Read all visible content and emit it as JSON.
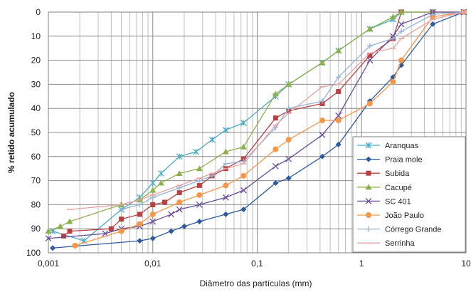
{
  "chart_data": {
    "type": "line",
    "x_scale": "log",
    "y_reversed": true,
    "xlabel": "Diâmetro das partículas (mm)",
    "ylabel": "% retido acumulado",
    "xlim": [
      0.001,
      10
    ],
    "ylim": [
      0,
      100
    ],
    "x_ticks": [
      "0,001",
      "0,01",
      "0,1",
      "1",
      "10"
    ],
    "y_ticks": [
      "0",
      "10",
      "20",
      "30",
      "40",
      "50",
      "60",
      "70",
      "80",
      "90",
      "100"
    ],
    "grid": true,
    "legend_position": "bottom-right",
    "series": [
      {
        "name": "Aranquas",
        "color": "#4bacc6",
        "marker": "star",
        "points": [
          [
            0.0011,
            91
          ],
          [
            0.0022,
            95
          ],
          [
            0.005,
            82
          ],
          [
            0.0075,
            77
          ],
          [
            0.01,
            71
          ],
          [
            0.012,
            67
          ],
          [
            0.018,
            60
          ],
          [
            0.026,
            58
          ],
          [
            0.037,
            53
          ],
          [
            0.05,
            49
          ],
          [
            0.074,
            46
          ],
          [
            0.15,
            35
          ],
          [
            0.2,
            30
          ],
          [
            0.42,
            21
          ],
          [
            0.6,
            16
          ],
          [
            1.2,
            7
          ],
          [
            2.0,
            3
          ],
          [
            2.4,
            0
          ],
          [
            4.8,
            0
          ],
          [
            9.5,
            0
          ]
        ]
      },
      {
        "name": "Praia mole",
        "color": "#2e5b9e",
        "marker": "diamond",
        "points": [
          [
            0.0011,
            98
          ],
          [
            0.0075,
            95
          ],
          [
            0.01,
            94
          ],
          [
            0.015,
            91
          ],
          [
            0.02,
            89
          ],
          [
            0.028,
            87
          ],
          [
            0.05,
            84
          ],
          [
            0.074,
            82
          ],
          [
            0.15,
            71
          ],
          [
            0.2,
            69
          ],
          [
            0.42,
            60
          ],
          [
            0.6,
            55
          ],
          [
            1.2,
            37
          ],
          [
            2.0,
            27
          ],
          [
            2.4,
            22
          ],
          [
            4.8,
            5
          ],
          [
            9.5,
            0
          ]
        ]
      },
      {
        "name": "Subida",
        "color": "#b94040",
        "marker": "square",
        "points": [
          [
            0.0014,
            93
          ],
          [
            0.0016,
            91
          ],
          [
            0.004,
            90
          ],
          [
            0.005,
            86
          ],
          [
            0.0075,
            84
          ],
          [
            0.01,
            80
          ],
          [
            0.013,
            79
          ],
          [
            0.018,
            75
          ],
          [
            0.028,
            72
          ],
          [
            0.037,
            68
          ],
          [
            0.05,
            65
          ],
          [
            0.074,
            61
          ],
          [
            0.15,
            44
          ],
          [
            0.2,
            41
          ],
          [
            0.42,
            38
          ],
          [
            0.6,
            33
          ],
          [
            1.2,
            18
          ],
          [
            2.0,
            11
          ],
          [
            2.4,
            0
          ],
          [
            4.8,
            0
          ],
          [
            9.5,
            0
          ]
        ]
      },
      {
        "name": "Cacupé",
        "color": "#8db04a",
        "marker": "triangle",
        "points": [
          [
            0.001,
            91
          ],
          [
            0.0013,
            89
          ],
          [
            0.0016,
            87
          ],
          [
            0.005,
            80
          ],
          [
            0.0075,
            78
          ],
          [
            0.01,
            74
          ],
          [
            0.012,
            71
          ],
          [
            0.018,
            67
          ],
          [
            0.028,
            65
          ],
          [
            0.05,
            58
          ],
          [
            0.074,
            56
          ],
          [
            0.15,
            34
          ],
          [
            0.2,
            30
          ],
          [
            0.42,
            21
          ],
          [
            0.6,
            16
          ],
          [
            1.2,
            7
          ],
          [
            2.0,
            2
          ],
          [
            2.4,
            0
          ],
          [
            4.8,
            0
          ],
          [
            9.5,
            0
          ]
        ]
      },
      {
        "name": "SC 401",
        "color": "#6a4c9c",
        "marker": "x",
        "points": [
          [
            0.001,
            94
          ],
          [
            0.0035,
            92
          ],
          [
            0.005,
            90
          ],
          [
            0.0075,
            89
          ],
          [
            0.01,
            87
          ],
          [
            0.015,
            84
          ],
          [
            0.018,
            82
          ],
          [
            0.028,
            80
          ],
          [
            0.05,
            77
          ],
          [
            0.074,
            74
          ],
          [
            0.15,
            64
          ],
          [
            0.2,
            61
          ],
          [
            0.42,
            51
          ],
          [
            0.6,
            43
          ],
          [
            1.2,
            20
          ],
          [
            2.0,
            10
          ],
          [
            2.4,
            5
          ],
          [
            4.8,
            0
          ],
          [
            9.5,
            0
          ]
        ]
      },
      {
        "name": "João Paulo",
        "color": "#f79646",
        "marker": "circle",
        "points": [
          [
            0.0018,
            97
          ],
          [
            0.005,
            91
          ],
          [
            0.0075,
            88
          ],
          [
            0.01,
            84
          ],
          [
            0.018,
            79
          ],
          [
            0.028,
            76
          ],
          [
            0.05,
            72
          ],
          [
            0.074,
            68
          ],
          [
            0.15,
            57
          ],
          [
            0.2,
            53
          ],
          [
            0.42,
            45
          ],
          [
            0.6,
            45
          ],
          [
            1.2,
            38
          ],
          [
            2.0,
            29
          ],
          [
            2.4,
            20
          ],
          [
            4.8,
            2
          ],
          [
            9.5,
            0
          ]
        ]
      },
      {
        "name": "Córrego Grande",
        "color": "#95b3d7",
        "marker": "plus",
        "points": [
          [
            0.005,
            82
          ],
          [
            0.0075,
            80
          ],
          [
            0.01,
            77
          ],
          [
            0.018,
            73
          ],
          [
            0.028,
            70
          ],
          [
            0.037,
            68
          ],
          [
            0.05,
            63
          ],
          [
            0.074,
            62
          ],
          [
            0.15,
            48
          ],
          [
            0.2,
            40
          ],
          [
            0.42,
            37
          ],
          [
            0.6,
            27
          ],
          [
            1.2,
            14
          ],
          [
            2.0,
            11
          ],
          [
            2.4,
            8
          ],
          [
            4.8,
            1
          ],
          [
            9.5,
            0
          ]
        ]
      },
      {
        "name": "Serrinha",
        "color": "#e6a4a4",
        "marker": "dash",
        "points": [
          [
            0.0016,
            82
          ],
          [
            0.005,
            80
          ],
          [
            0.0075,
            78
          ],
          [
            0.01,
            76
          ],
          [
            0.018,
            72
          ],
          [
            0.028,
            69
          ],
          [
            0.037,
            67
          ],
          [
            0.05,
            65
          ],
          [
            0.074,
            63
          ],
          [
            0.15,
            47
          ],
          [
            0.2,
            42
          ],
          [
            0.42,
            31
          ],
          [
            0.6,
            30
          ],
          [
            1.2,
            17
          ],
          [
            2.0,
            15
          ],
          [
            2.4,
            11
          ],
          [
            4.8,
            3
          ],
          [
            9.5,
            0
          ]
        ]
      }
    ]
  }
}
